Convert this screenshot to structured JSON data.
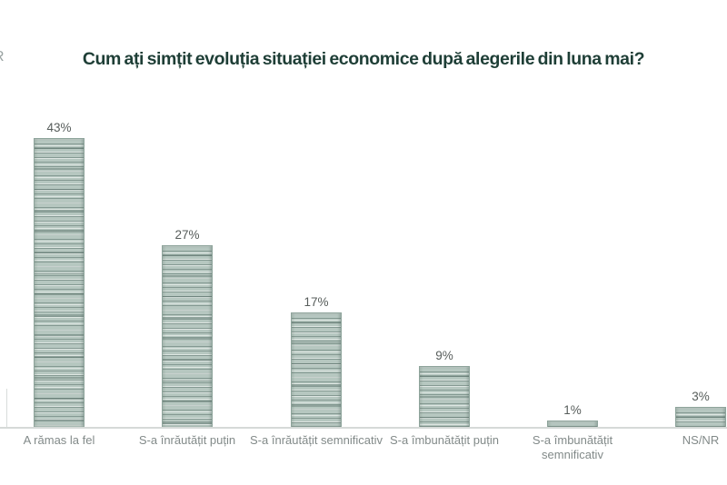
{
  "page": {
    "watermark_fragment": "R"
  },
  "chart_data": {
    "type": "bar",
    "title": "Cum ați simțit evoluția situației economice după alegerile din luna mai?",
    "categories": [
      "A rămas la fel",
      "S-a înrăutățit puțin",
      "S-a înrăutățit semnificativ",
      "S-a îmbunătățit puțin",
      "S-a îmbunătățit\nsemnificativ",
      "NS/NR"
    ],
    "values": [
      43,
      27,
      17,
      9,
      1,
      3
    ],
    "labels": [
      "43%",
      "27%",
      "17%",
      "9%",
      "1%",
      "3%"
    ],
    "xlabel": "",
    "ylabel": "",
    "ylim": [
      0,
      45
    ],
    "grid": false,
    "legend": "none",
    "value_labels_position": "above-bars",
    "colors": {
      "bar_fill": "#b6c7c0",
      "bar_stripe_dark": "#7d948c",
      "bar_stripe_light": "#dfe8e4",
      "bar_border": "#8ea49b",
      "title_text": "#1e3e36",
      "value_label_text": "#575d5b",
      "category_label_text": "#828a89",
      "axis_line": "#d6dad8",
      "background": "#ffffff"
    }
  }
}
